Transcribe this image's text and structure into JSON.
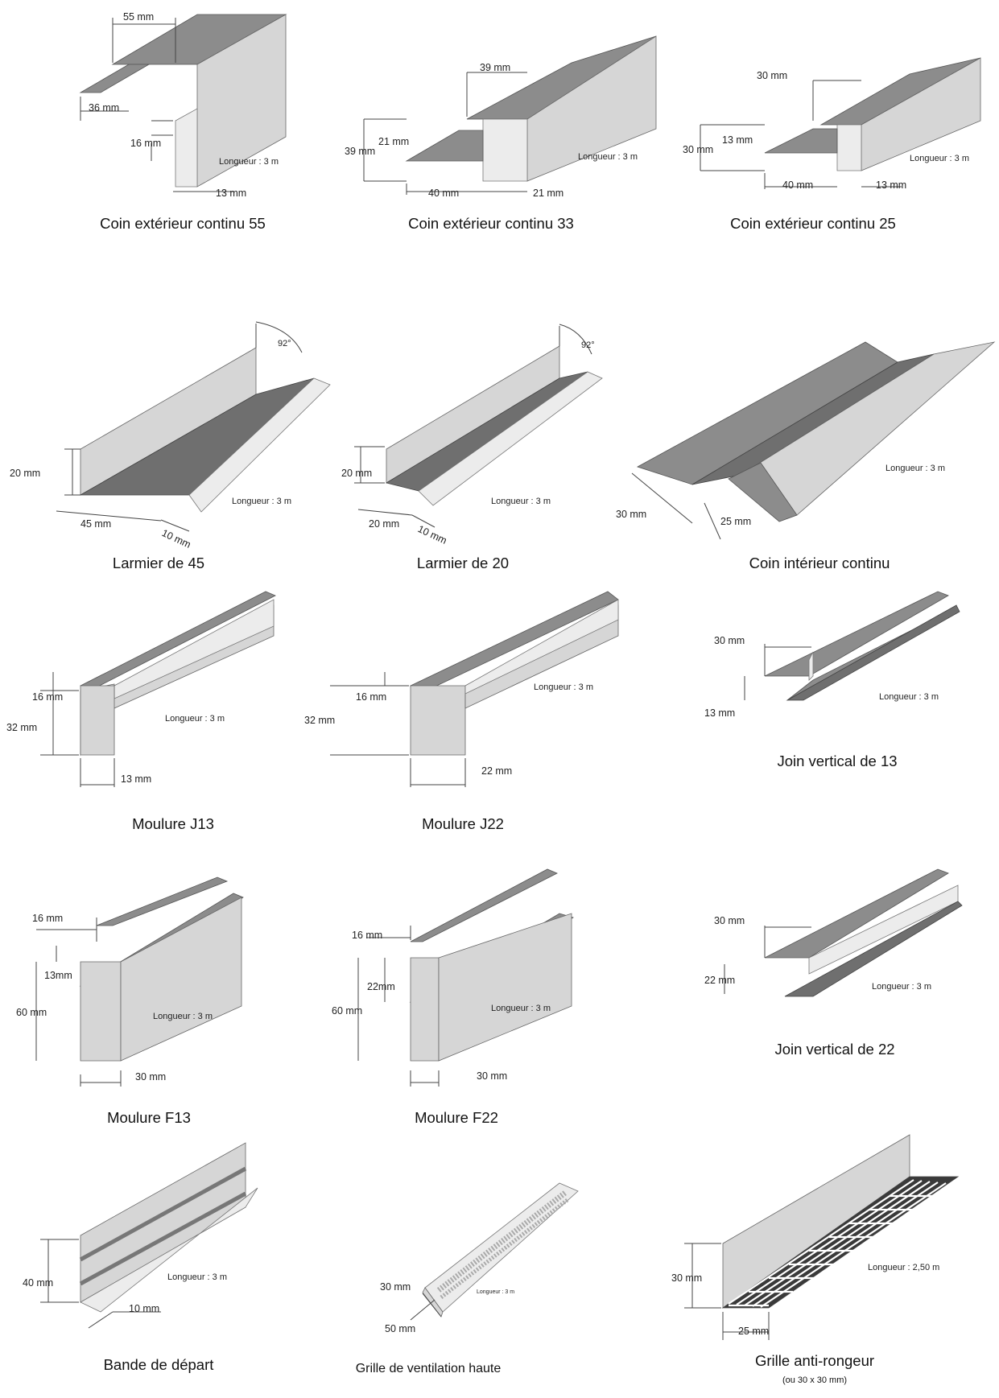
{
  "profiles": [
    {
      "id": "coin55",
      "caption": "Coin extérieur continu 55",
      "dims": [
        "55 mm",
        "36 mm",
        "16 mm",
        "13 mm"
      ],
      "length": "Longueur : 3 m"
    },
    {
      "id": "coin33",
      "caption": "Coin extérieur continu 33",
      "dims": [
        "39 mm",
        "21 mm",
        "39 mm",
        "40 mm",
        "21 mm"
      ],
      "length": "Longueur : 3 m"
    },
    {
      "id": "coin25",
      "caption": "Coin extérieur continu 25",
      "dims": [
        "30 mm",
        "13 mm",
        "30 mm",
        "40 mm",
        "13 mm"
      ],
      "length": "Longueur : 3 m"
    },
    {
      "id": "larmier45",
      "caption": "Larmier de 45",
      "dims": [
        "92°",
        "20 mm",
        "45 mm",
        "10 mm"
      ],
      "length": "Longueur : 3 m"
    },
    {
      "id": "larmier20",
      "caption": "Larmier de 20",
      "dims": [
        "92°",
        "20 mm",
        "20 mm",
        "10 mm"
      ],
      "length": "Longueur : 3 m"
    },
    {
      "id": "coinint",
      "caption": "Coin intérieur continu",
      "dims": [
        "30 mm",
        "25 mm"
      ],
      "length": "Longueur : 3 m"
    },
    {
      "id": "j13",
      "caption": "Moulure J13",
      "dims": [
        "16 mm",
        "32 mm",
        "13 mm"
      ],
      "length": "Longueur : 3 m"
    },
    {
      "id": "j22",
      "caption": "Moulure J22",
      "dims": [
        "16 mm",
        "32 mm",
        "22 mm"
      ],
      "length": "Longueur : 3 m"
    },
    {
      "id": "jv13",
      "caption": "Join vertical de 13",
      "dims": [
        "30 mm",
        "13 mm"
      ],
      "length": "Longueur : 3 m"
    },
    {
      "id": "f13",
      "caption": "Moulure F13",
      "dims": [
        "16 mm",
        "13mm",
        "60 mm",
        "30 mm"
      ],
      "length": "Longueur : 3 m"
    },
    {
      "id": "f22",
      "caption": "Moulure F22",
      "dims": [
        "16 mm",
        "22mm",
        "60 mm",
        "30 mm"
      ],
      "length": "Longueur : 3 m"
    },
    {
      "id": "jv22",
      "caption": "Join vertical de 22",
      "dims": [
        "30 mm",
        "22 mm"
      ],
      "length": "Longueur : 3 m"
    },
    {
      "id": "bande",
      "caption": "Bande de départ",
      "dims": [
        "40 mm",
        "10 mm"
      ],
      "length": "Longueur : 3 m"
    },
    {
      "id": "grille",
      "caption": "Grille de ventilation haute",
      "dims": [
        "30 mm",
        "50 mm"
      ],
      "length": "Longueur : 3 m"
    },
    {
      "id": "rongeur",
      "caption": "Grille anti-rongeur",
      "note": "(ou 30 x 30 mm)",
      "dims": [
        "30 mm",
        "25 mm"
      ],
      "length": "Longueur : 2,50 m"
    }
  ]
}
